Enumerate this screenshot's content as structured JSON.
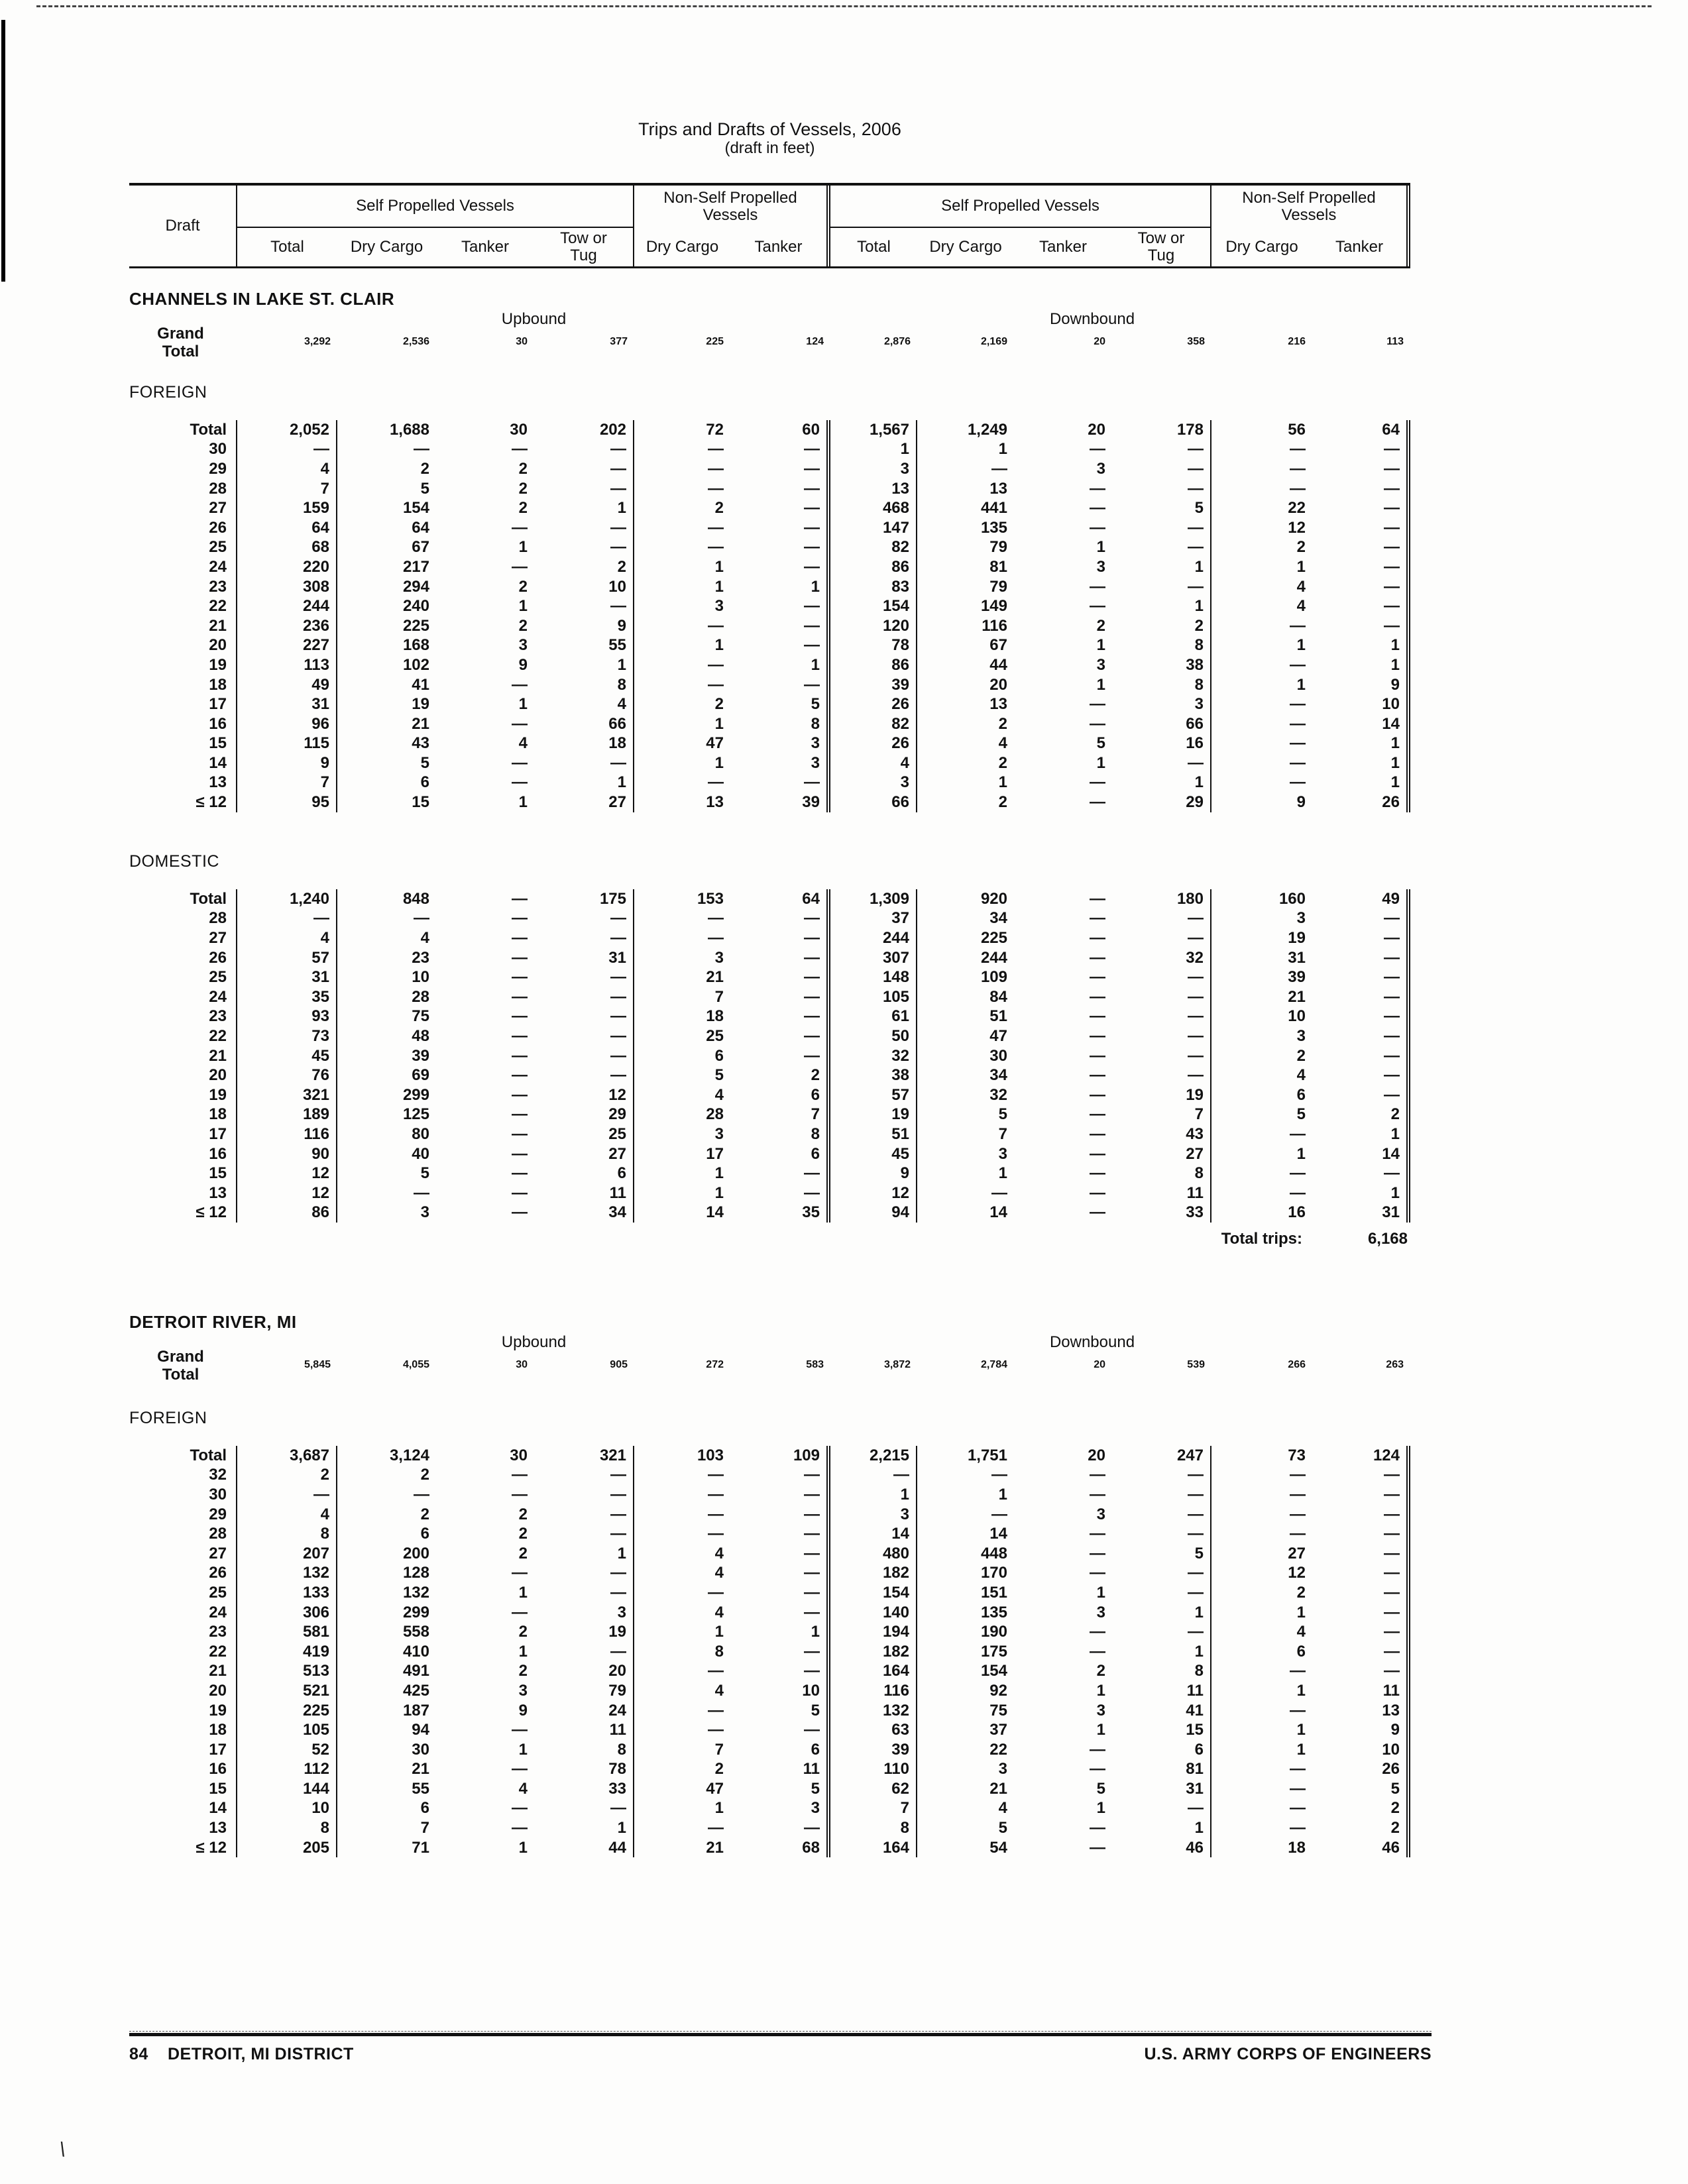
{
  "page": {
    "title": "Trips and Drafts of Vessels, 2006",
    "subtitle": "(draft in feet)"
  },
  "header": {
    "draft_label": "Draft",
    "spv_label": "Self Propelled Vessels",
    "nspv_label": "Non-Self Propelled Vessels",
    "spv_columns": [
      "Total",
      "Dry Cargo",
      "Tanker",
      "Tow or Tug"
    ],
    "nspv_columns": [
      "Dry Cargo",
      "Tanker"
    ]
  },
  "sections": [
    {
      "heading": "CHANNELS IN LAKE ST. CLAIR",
      "upbound_label": "Upbound",
      "downbound_label": "Downbound",
      "grand_label": [
        "Grand",
        "Total"
      ],
      "grand_total": [
        "3,292",
        "2,536",
        "30",
        "377",
        "225",
        "124",
        "2,876",
        "2,169",
        "20",
        "358",
        "216",
        "113"
      ],
      "subsections": [
        {
          "label": "FOREIGN",
          "rows": [
            [
              "Total",
              "2,052",
              "1,688",
              "30",
              "202",
              "72",
              "60",
              "1,567",
              "1,249",
              "20",
              "178",
              "56",
              "64"
            ],
            [
              "30",
              "—",
              "—",
              "—",
              "—",
              "—",
              "—",
              "1",
              "1",
              "—",
              "—",
              "—",
              "—"
            ],
            [
              "29",
              "4",
              "2",
              "2",
              "—",
              "—",
              "—",
              "3",
              "—",
              "3",
              "—",
              "—",
              "—"
            ],
            [
              "28",
              "7",
              "5",
              "2",
              "—",
              "—",
              "—",
              "13",
              "13",
              "—",
              "—",
              "—",
              "—"
            ],
            [
              "27",
              "159",
              "154",
              "2",
              "1",
              "2",
              "—",
              "468",
              "441",
              "—",
              "5",
              "22",
              "—"
            ],
            [
              "26",
              "64",
              "64",
              "—",
              "—",
              "—",
              "—",
              "147",
              "135",
              "—",
              "—",
              "12",
              "—"
            ],
            [
              "25",
              "68",
              "67",
              "1",
              "—",
              "—",
              "—",
              "82",
              "79",
              "1",
              "—",
              "2",
              "—"
            ],
            [
              "24",
              "220",
              "217",
              "—",
              "2",
              "1",
              "—",
              "86",
              "81",
              "3",
              "1",
              "1",
              "—"
            ],
            [
              "23",
              "308",
              "294",
              "2",
              "10",
              "1",
              "1",
              "83",
              "79",
              "—",
              "—",
              "4",
              "—"
            ],
            [
              "22",
              "244",
              "240",
              "1",
              "—",
              "3",
              "—",
              "154",
              "149",
              "—",
              "1",
              "4",
              "—"
            ],
            [
              "21",
              "236",
              "225",
              "2",
              "9",
              "—",
              "—",
              "120",
              "116",
              "2",
              "2",
              "—",
              "—"
            ],
            [
              "20",
              "227",
              "168",
              "3",
              "55",
              "1",
              "—",
              "78",
              "67",
              "1",
              "8",
              "1",
              "1"
            ],
            [
              "19",
              "113",
              "102",
              "9",
              "1",
              "—",
              "1",
              "86",
              "44",
              "3",
              "38",
              "—",
              "1"
            ],
            [
              "18",
              "49",
              "41",
              "—",
              "8",
              "—",
              "—",
              "39",
              "20",
              "1",
              "8",
              "1",
              "9"
            ],
            [
              "17",
              "31",
              "19",
              "1",
              "4",
              "2",
              "5",
              "26",
              "13",
              "—",
              "3",
              "—",
              "10"
            ],
            [
              "16",
              "96",
              "21",
              "—",
              "66",
              "1",
              "8",
              "82",
              "2",
              "—",
              "66",
              "—",
              "14"
            ],
            [
              "15",
              "115",
              "43",
              "4",
              "18",
              "47",
              "3",
              "26",
              "4",
              "5",
              "16",
              "—",
              "1"
            ],
            [
              "14",
              "9",
              "5",
              "—",
              "—",
              "1",
              "3",
              "4",
              "2",
              "1",
              "—",
              "—",
              "1"
            ],
            [
              "13",
              "7",
              "6",
              "—",
              "1",
              "—",
              "—",
              "3",
              "1",
              "—",
              "1",
              "—",
              "1"
            ],
            [
              "≤ 12",
              "95",
              "15",
              "1",
              "27",
              "13",
              "39",
              "66",
              "2",
              "—",
              "29",
              "9",
              "26"
            ]
          ]
        },
        {
          "label": "DOMESTIC",
          "rows": [
            [
              "Total",
              "1,240",
              "848",
              "—",
              "175",
              "153",
              "64",
              "1,309",
              "920",
              "—",
              "180",
              "160",
              "49"
            ],
            [
              "28",
              "—",
              "—",
              "—",
              "—",
              "—",
              "—",
              "37",
              "34",
              "—",
              "—",
              "3",
              "—"
            ],
            [
              "27",
              "4",
              "4",
              "—",
              "—",
              "—",
              "—",
              "244",
              "225",
              "—",
              "—",
              "19",
              "—"
            ],
            [
              "26",
              "57",
              "23",
              "—",
              "31",
              "3",
              "—",
              "307",
              "244",
              "—",
              "32",
              "31",
              "—"
            ],
            [
              "25",
              "31",
              "10",
              "—",
              "—",
              "21",
              "—",
              "148",
              "109",
              "—",
              "—",
              "39",
              "—"
            ],
            [
              "24",
              "35",
              "28",
              "—",
              "—",
              "7",
              "—",
              "105",
              "84",
              "—",
              "—",
              "21",
              "—"
            ],
            [
              "23",
              "93",
              "75",
              "—",
              "—",
              "18",
              "—",
              "61",
              "51",
              "—",
              "—",
              "10",
              "—"
            ],
            [
              "22",
              "73",
              "48",
              "—",
              "—",
              "25",
              "—",
              "50",
              "47",
              "—",
              "—",
              "3",
              "—"
            ],
            [
              "21",
              "45",
              "39",
              "—",
              "—",
              "6",
              "—",
              "32",
              "30",
              "—",
              "—",
              "2",
              "—"
            ],
            [
              "20",
              "76",
              "69",
              "—",
              "—",
              "5",
              "2",
              "38",
              "34",
              "—",
              "—",
              "4",
              "—"
            ],
            [
              "19",
              "321",
              "299",
              "—",
              "12",
              "4",
              "6",
              "57",
              "32",
              "—",
              "19",
              "6",
              "—"
            ],
            [
              "18",
              "189",
              "125",
              "—",
              "29",
              "28",
              "7",
              "19",
              "5",
              "—",
              "7",
              "5",
              "2"
            ],
            [
              "17",
              "116",
              "80",
              "—",
              "25",
              "3",
              "8",
              "51",
              "7",
              "—",
              "43",
              "—",
              "1"
            ],
            [
              "16",
              "90",
              "40",
              "—",
              "27",
              "17",
              "6",
              "45",
              "3",
              "—",
              "27",
              "1",
              "14"
            ],
            [
              "15",
              "12",
              "5",
              "—",
              "6",
              "1",
              "—",
              "9",
              "1",
              "—",
              "8",
              "—",
              "—"
            ],
            [
              "13",
              "12",
              "—",
              "—",
              "11",
              "1",
              "—",
              "12",
              "—",
              "—",
              "11",
              "—",
              "1"
            ],
            [
              "≤ 12",
              "86",
              "3",
              "—",
              "34",
              "14",
              "35",
              "94",
              "14",
              "—",
              "33",
              "16",
              "31"
            ]
          ],
          "total_trips_label": "Total trips:",
          "total_trips_value": "6,168"
        }
      ]
    },
    {
      "heading": "DETROIT RIVER, MI",
      "upbound_label": "Upbound",
      "downbound_label": "Downbound",
      "grand_label": [
        "Grand",
        "Total"
      ],
      "grand_total": [
        "5,845",
        "4,055",
        "30",
        "905",
        "272",
        "583",
        "3,872",
        "2,784",
        "20",
        "539",
        "266",
        "263"
      ],
      "subsections": [
        {
          "label": "FOREIGN",
          "rows": [
            [
              "Total",
              "3,687",
              "3,124",
              "30",
              "321",
              "103",
              "109",
              "2,215",
              "1,751",
              "20",
              "247",
              "73",
              "124"
            ],
            [
              "32",
              "2",
              "2",
              "—",
              "—",
              "—",
              "—",
              "—",
              "—",
              "—",
              "—",
              "—",
              "—"
            ],
            [
              "30",
              "—",
              "—",
              "—",
              "—",
              "—",
              "—",
              "1",
              "1",
              "—",
              "—",
              "—",
              "—"
            ],
            [
              "29",
              "4",
              "2",
              "2",
              "—",
              "—",
              "—",
              "3",
              "—",
              "3",
              "—",
              "—",
              "—"
            ],
            [
              "28",
              "8",
              "6",
              "2",
              "—",
              "—",
              "—",
              "14",
              "14",
              "—",
              "—",
              "—",
              "—"
            ],
            [
              "27",
              "207",
              "200",
              "2",
              "1",
              "4",
              "—",
              "480",
              "448",
              "—",
              "5",
              "27",
              "—"
            ],
            [
              "26",
              "132",
              "128",
              "—",
              "—",
              "4",
              "—",
              "182",
              "170",
              "—",
              "—",
              "12",
              "—"
            ],
            [
              "25",
              "133",
              "132",
              "1",
              "—",
              "—",
              "—",
              "154",
              "151",
              "1",
              "—",
              "2",
              "—"
            ],
            [
              "24",
              "306",
              "299",
              "—",
              "3",
              "4",
              "—",
              "140",
              "135",
              "3",
              "1",
              "1",
              "—"
            ],
            [
              "23",
              "581",
              "558",
              "2",
              "19",
              "1",
              "1",
              "194",
              "190",
              "—",
              "—",
              "4",
              "—"
            ],
            [
              "22",
              "419",
              "410",
              "1",
              "—",
              "8",
              "—",
              "182",
              "175",
              "—",
              "1",
              "6",
              "—"
            ],
            [
              "21",
              "513",
              "491",
              "2",
              "20",
              "—",
              "—",
              "164",
              "154",
              "2",
              "8",
              "—",
              "—"
            ],
            [
              "20",
              "521",
              "425",
              "3",
              "79",
              "4",
              "10",
              "116",
              "92",
              "1",
              "11",
              "1",
              "11"
            ],
            [
              "19",
              "225",
              "187",
              "9",
              "24",
              "—",
              "5",
              "132",
              "75",
              "3",
              "41",
              "—",
              "13"
            ],
            [
              "18",
              "105",
              "94",
              "—",
              "11",
              "—",
              "—",
              "63",
              "37",
              "1",
              "15",
              "1",
              "9"
            ],
            [
              "17",
              "52",
              "30",
              "1",
              "8",
              "7",
              "6",
              "39",
              "22",
              "—",
              "6",
              "1",
              "10"
            ],
            [
              "16",
              "112",
              "21",
              "—",
              "78",
              "2",
              "11",
              "110",
              "3",
              "—",
              "81",
              "—",
              "26"
            ],
            [
              "15",
              "144",
              "55",
              "4",
              "33",
              "47",
              "5",
              "62",
              "21",
              "5",
              "31",
              "—",
              "5"
            ],
            [
              "14",
              "10",
              "6",
              "—",
              "—",
              "1",
              "3",
              "7",
              "4",
              "1",
              "—",
              "—",
              "2"
            ],
            [
              "13",
              "8",
              "7",
              "—",
              "1",
              "—",
              "—",
              "8",
              "5",
              "—",
              "1",
              "—",
              "2"
            ],
            [
              "≤ 12",
              "205",
              "71",
              "1",
              "44",
              "21",
              "68",
              "164",
              "54",
              "—",
              "46",
              "18",
              "46"
            ]
          ]
        }
      ]
    }
  ],
  "footer": {
    "page_number": "84",
    "left_text": "DETROIT, MI DISTRICT",
    "right_text": "U.S. ARMY CORPS OF ENGINEERS"
  }
}
